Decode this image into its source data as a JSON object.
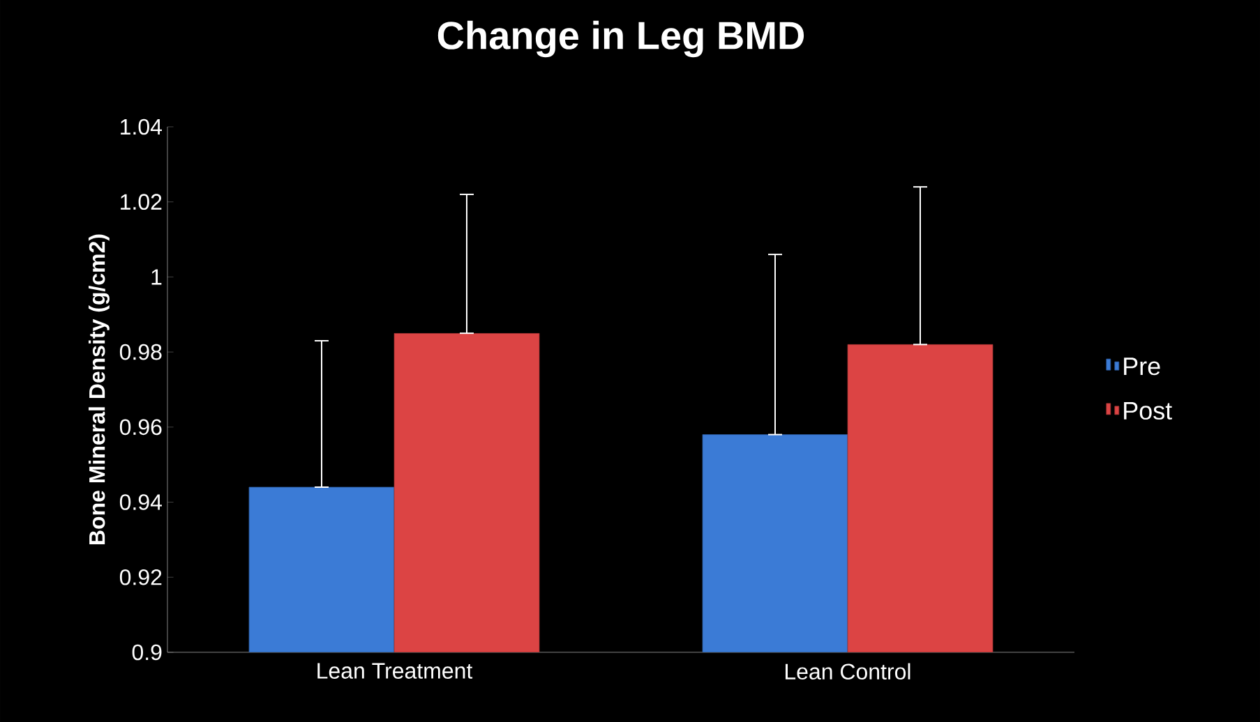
{
  "chart_data": {
    "type": "bar",
    "title": "Change in Leg BMD",
    "ylabel": "Bone Mineral Density (g/cm2)",
    "categories": [
      "Lean Treatment",
      "Lean Control"
    ],
    "series": [
      {
        "name": "Pre",
        "color": "#3b7bd6",
        "values": [
          0.944,
          0.958
        ],
        "errors": [
          [
            0.944,
            0.983
          ],
          [
            0.958,
            1.006
          ]
        ]
      },
      {
        "name": "Post",
        "color": "#dc4444",
        "values": [
          0.985,
          0.982
        ],
        "errors": [
          [
            0.985,
            1.022
          ],
          [
            0.982,
            1.024
          ]
        ]
      }
    ],
    "ylim": [
      0.9,
      1.04
    ],
    "yticks": [
      0.9,
      0.92,
      0.94,
      0.96,
      0.98,
      1,
      1.02,
      1.04
    ],
    "legend": "right"
  }
}
